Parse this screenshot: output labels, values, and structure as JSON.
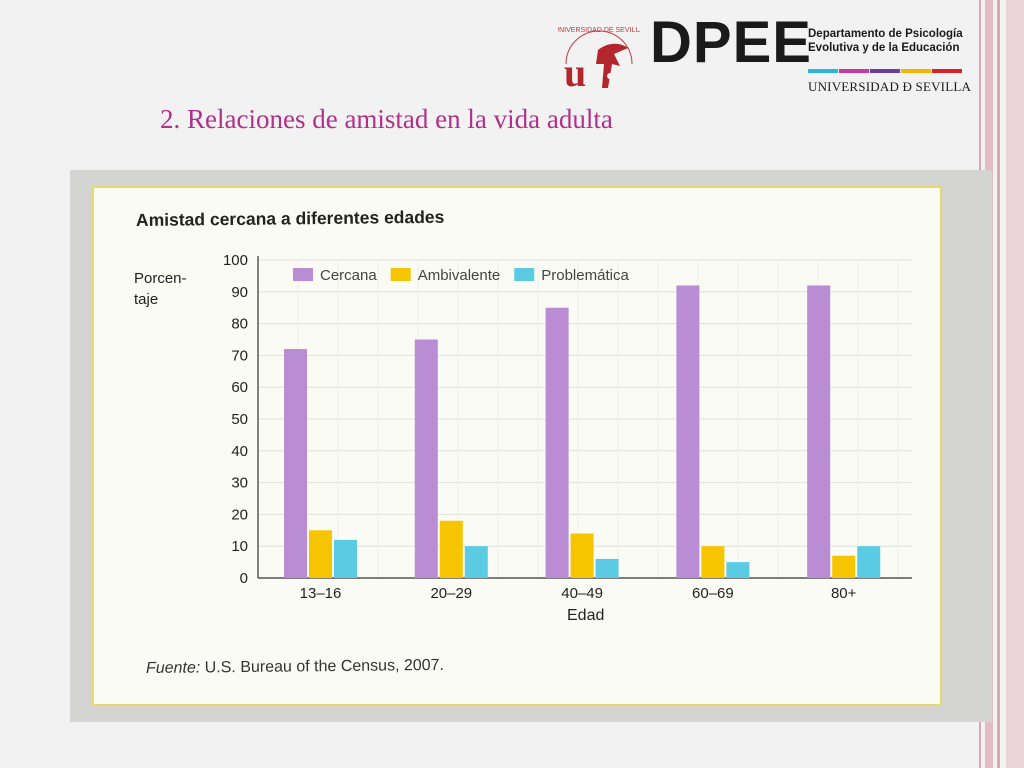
{
  "slide": {
    "title": "2. Relaciones de amistad en la vida adulta"
  },
  "header": {
    "university_logo_text": "UNIVERSIDAD DE SEVILLA",
    "dpee": "DPEE",
    "department_line1": "Departamento de Psicología",
    "department_line2": "Evolutiva y de la Educación",
    "university": "UNIVERSIDAD Ð SEVILLA",
    "bar_colors": [
      "#2bb5d8",
      "#c43a9e",
      "#6d3f9c",
      "#f4b400",
      "#d8232a"
    ]
  },
  "figure": {
    "source_prefix": "Fuente:",
    "source_text": "U.S. Bureau of the Census, 2007."
  },
  "chart_data": {
    "type": "bar",
    "title": "Amistad cercana a diferentes edades",
    "ylabel_line1": "Porcen-",
    "ylabel_line2": "taje",
    "xlabel": "Edad",
    "ylim": [
      0,
      100
    ],
    "yticks": [
      0,
      10,
      20,
      30,
      40,
      50,
      60,
      70,
      80,
      90,
      100
    ],
    "grid": true,
    "legend": "top",
    "categories": [
      "13–16",
      "20–29",
      "40–49",
      "60–69",
      "80+"
    ],
    "series": [
      {
        "name": "Cercana",
        "color": "#b98cd4",
        "values": [
          72,
          75,
          85,
          92,
          92
        ]
      },
      {
        "name": "Ambivalente",
        "color": "#f7c500",
        "values": [
          15,
          18,
          14,
          10,
          7
        ]
      },
      {
        "name": "Problemática",
        "color": "#5bcbe3",
        "values": [
          12,
          10,
          6,
          5,
          10
        ]
      }
    ]
  }
}
